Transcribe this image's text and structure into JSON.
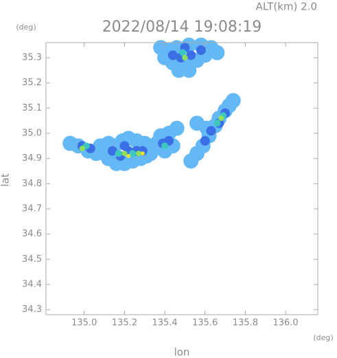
{
  "chart_data": {
    "type": "scatter",
    "title": "2022/08/14 19:08:19",
    "subtitle": "ALT(km) 2.0",
    "x_label": "lon",
    "x_unit": "(deg)",
    "y_label": "lat",
    "y_unit": "(deg)",
    "xlim": [
      134.81,
      136.16
    ],
    "ylim": [
      34.28,
      35.36
    ],
    "xticks": [
      {
        "value": 135.0,
        "label": "135.0"
      },
      135.2,
      135.4,
      135.6,
      135.8,
      {
        "value": 136.0,
        "label": "136.0"
      }
    ],
    "yticks": [
      34.3,
      34.4,
      34.5,
      34.6,
      34.7,
      34.8,
      34.9,
      {
        "value": 35.0,
        "label": "35.0"
      },
      35.1,
      35.2,
      35.3
    ],
    "series": [
      {
        "color": "#63b8f5",
        "x": [
          135.38,
          135.42,
          135.46,
          135.52,
          135.58,
          135.63,
          135.66,
          135.4,
          135.44,
          135.5,
          135.56,
          135.6,
          135.47,
          135.52,
          134.93,
          134.97,
          135.02,
          135.06,
          135.1,
          135.12,
          135.16,
          135.2,
          135.24,
          135.28,
          135.31,
          135.33,
          135.22,
          135.19,
          135.15,
          135.08,
          135.12,
          135.26,
          135.3,
          135.36,
          135.38,
          135.4,
          135.44,
          135.42,
          135.46,
          135.53,
          135.56,
          135.59,
          135.62,
          135.65,
          135.67,
          135.7,
          135.72,
          135.74,
          135.61,
          135.56
        ],
        "values": [
          35.34,
          35.33,
          35.34,
          35.35,
          35.35,
          35.34,
          35.32,
          35.3,
          35.28,
          35.27,
          35.29,
          35.31,
          35.25,
          35.25,
          34.96,
          34.95,
          34.93,
          34.92,
          34.92,
          34.9,
          34.88,
          34.88,
          34.89,
          34.9,
          34.91,
          34.92,
          34.98,
          34.97,
          34.95,
          34.95,
          34.96,
          34.97,
          34.96,
          34.96,
          34.99,
          34.93,
          34.95,
          35.0,
          35.02,
          34.89,
          34.92,
          34.95,
          34.99,
          35.03,
          35.06,
          35.09,
          35.11,
          35.13,
          35.02,
          35.04
        ]
      },
      {
        "color": "#3a6fe6",
        "x": [
          135.44,
          135.48,
          135.53,
          135.58,
          135.5,
          134.99,
          135.03,
          135.14,
          135.18,
          135.22,
          135.26,
          135.29,
          135.2,
          135.39,
          135.42,
          135.6,
          135.63,
          135.67,
          135.7
        ],
        "values": [
          35.31,
          35.3,
          35.31,
          35.33,
          35.34,
          34.95,
          34.94,
          34.93,
          34.91,
          34.93,
          34.93,
          34.93,
          34.95,
          34.96,
          34.97,
          34.97,
          35.01,
          35.04,
          35.08
        ]
      },
      {
        "color": "#3cc8c0",
        "x": [
          135.49,
          135.01,
          135.17,
          135.24,
          135.4,
          135.66,
          135.69
        ],
        "values": [
          35.32,
          34.95,
          34.92,
          34.92,
          34.95,
          35.04,
          35.07
        ]
      },
      {
        "color": "#8ee05a",
        "x": [
          135.5,
          135.2,
          135.27,
          135.68,
          134.99
        ],
        "values": [
          35.3,
          34.92,
          34.92,
          35.06,
          34.94
        ]
      },
      {
        "color": "#e6e43c",
        "x": [
          135.22,
          135.29
        ],
        "values": [
          34.91,
          34.92
        ]
      }
    ]
  }
}
